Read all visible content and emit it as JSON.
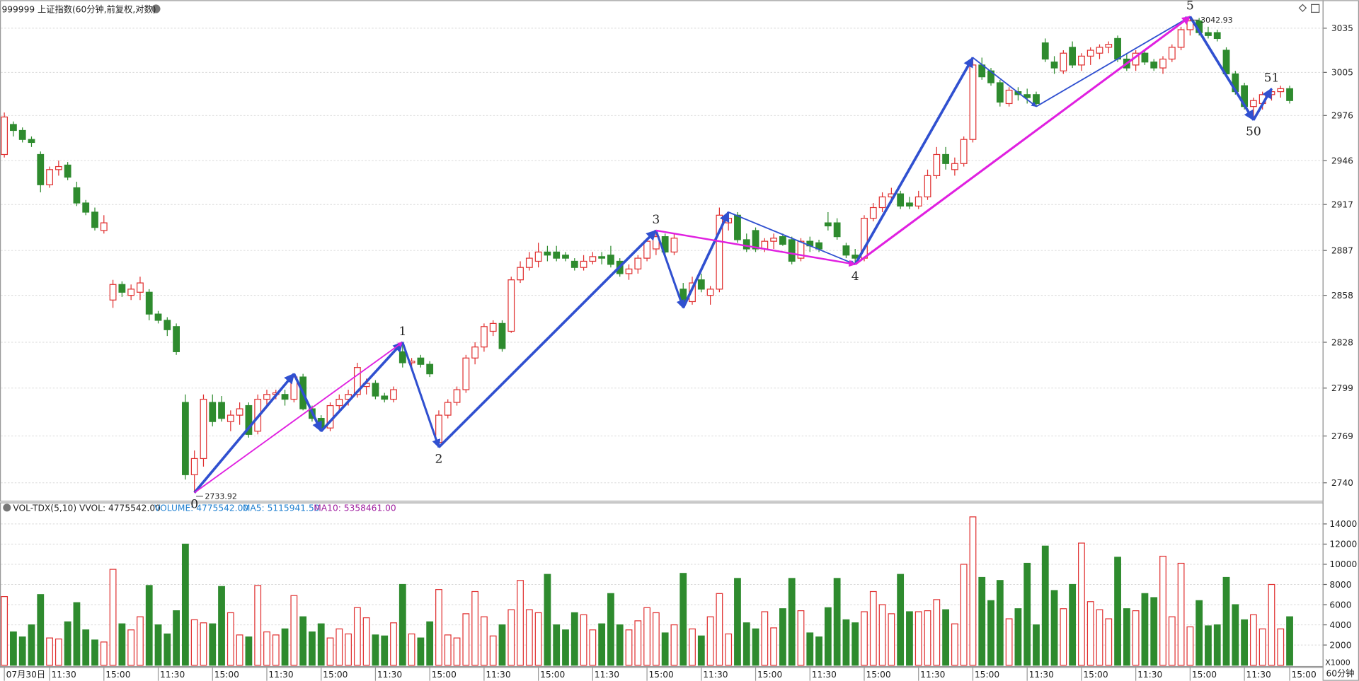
{
  "chart_data": {
    "type": "candlestick",
    "title": "999999 上证指数(60分钟,前复权,对数)",
    "log_scale": true,
    "grid": true,
    "up_color": "#e03030",
    "down_color": "#2e8b2e",
    "ylim": [
      2729,
      3053
    ],
    "yticks": [
      2740,
      2769,
      2799,
      2828,
      2858,
      2887,
      2917,
      2946,
      2976,
      3005,
      3035
    ],
    "categories": [
      "07月30日",
      null,
      null,
      null,
      null,
      "11:30",
      null,
      null,
      null,
      null,
      null,
      "15:00",
      null,
      null,
      null,
      null,
      null,
      "11:30",
      null,
      null,
      null,
      null,
      null,
      "15:00",
      null,
      null,
      null,
      null,
      null,
      "11:30",
      null,
      null,
      null,
      null,
      null,
      "15:00",
      null,
      null,
      null,
      null,
      null,
      "11:30",
      null,
      null,
      null,
      null,
      null,
      "15:00",
      null,
      null,
      null,
      null,
      null,
      "11:30",
      null,
      null,
      null,
      null,
      null,
      "15:00",
      null,
      null,
      null,
      null,
      null,
      "11:30",
      null,
      null,
      null,
      null,
      null,
      "15:00",
      null,
      null,
      null,
      null,
      null,
      "11:30",
      null,
      null,
      null,
      null,
      null,
      "15:00",
      null,
      null,
      null,
      null,
      null,
      "11:30",
      null,
      null,
      null,
      null,
      null,
      "15:00",
      null,
      null,
      null,
      null,
      null,
      "11:30",
      null,
      null,
      null,
      null,
      null,
      "15:00",
      null,
      null,
      null,
      null,
      null,
      "11:30",
      null,
      null,
      null,
      null,
      null,
      "15:00",
      null,
      null,
      null,
      null,
      null,
      "11:30",
      null,
      null,
      null,
      null,
      null,
      "15:00",
      null,
      null,
      null,
      null,
      null,
      "11:30",
      null,
      null,
      null,
      null,
      "15:00"
    ],
    "candles": [
      [
        2950,
        2978,
        2948,
        2975
      ],
      [
        2970,
        2972,
        2962,
        2966
      ],
      [
        2966,
        2968,
        2958,
        2960
      ],
      [
        2960,
        2962,
        2955,
        2958
      ],
      [
        2950,
        2952,
        2925,
        2930
      ],
      [
        2930,
        2942,
        2928,
        2940
      ],
      [
        2940,
        2946,
        2936,
        2942
      ],
      [
        2943,
        2945,
        2933,
        2935
      ],
      [
        2928,
        2932,
        2916,
        2918
      ],
      [
        2918,
        2920,
        2910,
        2912
      ],
      [
        2912,
        2915,
        2900,
        2902
      ],
      [
        2900,
        2910,
        2898,
        2905
      ],
      [
        2855,
        2868,
        2850,
        2865
      ],
      [
        2865,
        2867,
        2857,
        2860
      ],
      [
        2858,
        2865,
        2855,
        2862
      ],
      [
        2860,
        2870,
        2855,
        2866
      ],
      [
        2860,
        2862,
        2842,
        2846
      ],
      [
        2846,
        2848,
        2840,
        2842
      ],
      [
        2842,
        2844,
        2832,
        2836
      ],
      [
        2838,
        2840,
        2820,
        2822
      ],
      [
        2790,
        2795,
        2742,
        2745
      ],
      [
        2745,
        2760,
        2733.92,
        2755
      ],
      [
        2755,
        2795,
        2750,
        2792
      ],
      [
        2790,
        2795,
        2775,
        2778
      ],
      [
        2790,
        2794,
        2778,
        2780
      ],
      [
        2778,
        2785,
        2772,
        2782
      ],
      [
        2782,
        2790,
        2776,
        2786
      ],
      [
        2788,
        2790,
        2768,
        2770
      ],
      [
        2772,
        2795,
        2770,
        2792
      ],
      [
        2792,
        2798,
        2788,
        2795
      ],
      [
        2795,
        2798,
        2792,
        2796
      ],
      [
        2795,
        2798,
        2788,
        2792
      ],
      [
        2792,
        2808,
        2790,
        2806
      ],
      [
        2806,
        2808,
        2785,
        2786
      ],
      [
        2786,
        2788,
        2778,
        2780
      ],
      [
        2780,
        2782,
        2772,
        2774
      ],
      [
        2774,
        2790,
        2772,
        2788
      ],
      [
        2788,
        2795,
        2785,
        2792
      ],
      [
        2792,
        2798,
        2788,
        2795
      ],
      [
        2795,
        2815,
        2793,
        2812
      ],
      [
        2800,
        2805,
        2795,
        2802
      ],
      [
        2802,
        2804,
        2792,
        2794
      ],
      [
        2794,
        2796,
        2790,
        2792
      ],
      [
        2792,
        2800,
        2790,
        2798
      ],
      [
        2822,
        2828,
        2812,
        2815
      ],
      [
        2815,
        2818,
        2810,
        2816
      ],
      [
        2818,
        2820,
        2812,
        2814
      ],
      [
        2814,
        2816,
        2806,
        2808
      ],
      [
        2765,
        2785,
        2762,
        2782
      ],
      [
        2782,
        2792,
        2780,
        2790
      ],
      [
        2790,
        2800,
        2788,
        2798
      ],
      [
        2798,
        2820,
        2796,
        2818
      ],
      [
        2818,
        2828,
        2814,
        2825
      ],
      [
        2825,
        2840,
        2822,
        2838
      ],
      [
        2835,
        2842,
        2832,
        2840
      ],
      [
        2840,
        2842,
        2822,
        2824
      ],
      [
        2835,
        2870,
        2834,
        2868
      ],
      [
        2868,
        2880,
        2866,
        2876
      ],
      [
        2876,
        2886,
        2874,
        2882
      ],
      [
        2880,
        2892,
        2876,
        2886
      ],
      [
        2886,
        2890,
        2880,
        2884
      ],
      [
        2886,
        2890,
        2880,
        2882
      ],
      [
        2884,
        2886,
        2880,
        2882
      ],
      [
        2880,
        2882,
        2874,
        2876
      ],
      [
        2876,
        2884,
        2874,
        2880
      ],
      [
        2880,
        2886,
        2878,
        2883
      ],
      [
        2883,
        2886,
        2878,
        2882
      ],
      [
        2884,
        2890,
        2876,
        2878
      ],
      [
        2880,
        2882,
        2870,
        2872
      ],
      [
        2872,
        2878,
        2868,
        2875
      ],
      [
        2875,
        2884,
        2872,
        2882
      ],
      [
        2882,
        2895,
        2880,
        2893
      ],
      [
        2888,
        2900,
        2884,
        2896
      ],
      [
        2896,
        2898,
        2884,
        2886
      ],
      [
        2886,
        2898,
        2884,
        2895
      ],
      [
        2862,
        2866,
        2850,
        2853
      ],
      [
        2854,
        2870,
        2852,
        2866
      ],
      [
        2868,
        2872,
        2860,
        2862
      ],
      [
        2858,
        2864,
        2852,
        2862
      ],
      [
        2862,
        2915,
        2860,
        2910
      ],
      [
        2905,
        2912,
        2900,
        2908
      ],
      [
        2910,
        2912,
        2892,
        2894
      ],
      [
        2894,
        2898,
        2886,
        2888
      ],
      [
        2900,
        2902,
        2886,
        2888
      ],
      [
        2888,
        2895,
        2886,
        2893
      ],
      [
        2893,
        2898,
        2888,
        2895
      ],
      [
        2896,
        2898,
        2890,
        2891
      ],
      [
        2894,
        2896,
        2878,
        2880
      ],
      [
        2882,
        2895,
        2880,
        2893
      ],
      [
        2893,
        2896,
        2886,
        2890
      ],
      [
        2892,
        2894,
        2886,
        2888
      ],
      [
        2905,
        2912,
        2900,
        2903
      ],
      [
        2905,
        2908,
        2894,
        2896
      ],
      [
        2890,
        2892,
        2882,
        2884
      ],
      [
        2884,
        2888,
        2878,
        2882
      ],
      [
        2882,
        2910,
        2880,
        2908
      ],
      [
        2908,
        2918,
        2906,
        2915
      ],
      [
        2915,
        2925,
        2912,
        2922
      ],
      [
        2922,
        2928,
        2918,
        2924
      ],
      [
        2924,
        2926,
        2914,
        2916
      ],
      [
        2918,
        2922,
        2914,
        2916
      ],
      [
        2916,
        2926,
        2914,
        2922
      ],
      [
        2922,
        2940,
        2920,
        2936
      ],
      [
        2936,
        2955,
        2934,
        2950
      ],
      [
        2950,
        2955,
        2940,
        2944
      ],
      [
        2940,
        2948,
        2936,
        2944
      ],
      [
        2944,
        2962,
        2942,
        2960
      ],
      [
        2960,
        3015,
        2958,
        3010
      ],
      [
        3010,
        3015,
        3000,
        3002
      ],
      [
        3006,
        3008,
        2996,
        2998
      ],
      [
        2998,
        3000,
        2982,
        2985
      ],
      [
        2984,
        2995,
        2982,
        2993
      ],
      [
        2992,
        2995,
        2986,
        2990
      ],
      [
        2990,
        2994,
        2984,
        2988
      ],
      [
        2990,
        2992,
        2982,
        2984
      ],
      [
        3025,
        3028,
        3012,
        3014
      ],
      [
        3012,
        3016,
        3004,
        3008
      ],
      [
        3006,
        3020,
        3004,
        3018
      ],
      [
        3022,
        3026,
        3008,
        3010
      ],
      [
        3010,
        3018,
        3006,
        3016
      ],
      [
        3016,
        3022,
        3010,
        3020
      ],
      [
        3018,
        3024,
        3014,
        3022
      ],
      [
        3022,
        3026,
        3018,
        3024
      ],
      [
        3028,
        3030,
        3012,
        3014
      ],
      [
        3014,
        3018,
        3006,
        3008
      ],
      [
        3010,
        3020,
        3006,
        3018
      ],
      [
        3018,
        3020,
        3010,
        3012
      ],
      [
        3012,
        3014,
        3006,
        3008
      ],
      [
        3008,
        3016,
        3004,
        3014
      ],
      [
        3014,
        3024,
        3012,
        3022
      ],
      [
        3022,
        3036,
        3020,
        3034
      ],
      [
        3034,
        3042.93,
        3030,
        3040
      ],
      [
        3040,
        3042,
        3030,
        3032
      ],
      [
        3032,
        3036,
        3028,
        3030
      ],
      [
        3032,
        3034,
        3026,
        3028
      ],
      [
        3020,
        3022,
        3002,
        3004
      ],
      [
        3004,
        3006,
        2990,
        2992
      ],
      [
        2996,
        2998,
        2980,
        2982
      ],
      [
        2982,
        2988,
        2973,
        2986
      ],
      [
        2984,
        2992,
        2980,
        2990
      ],
      [
        2990,
        2994,
        2986,
        2992
      ],
      [
        2992,
        2996,
        2988,
        2994
      ],
      [
        2994,
        2996,
        2984,
        2986
      ]
    ],
    "annotations": [
      {
        "text": "0",
        "index": 21,
        "price": 2733.92
      },
      {
        "text": "1",
        "index": 44,
        "price": 2828
      },
      {
        "text": "2",
        "index": 48,
        "price": 2762
      },
      {
        "text": "3",
        "index": 72,
        "price": 2900
      },
      {
        "text": "4",
        "index": 94,
        "price": 2878
      },
      {
        "text": "5",
        "index": 131,
        "price": 3042.93
      },
      {
        "text": "50",
        "index": 138,
        "price": 2973
      },
      {
        "text": "51",
        "index": 140,
        "price": 2994
      }
    ],
    "extremes": [
      {
        "index": 21,
        "value": 2733.92
      },
      {
        "index": 131,
        "value": 3042.93
      }
    ],
    "waves": [
      {
        "from": [
          21,
          2733.92
        ],
        "to": [
          32,
          2808
        ],
        "color": "#3050d0",
        "width": 3
      },
      {
        "from": [
          32,
          2808
        ],
        "to": [
          35,
          2772
        ],
        "color": "#3050d0",
        "width": 3
      },
      {
        "from": [
          35,
          2772
        ],
        "to": [
          44,
          2828
        ],
        "color": "#3050d0",
        "width": 3
      },
      {
        "from": [
          21,
          2733.92
        ],
        "to": [
          44,
          2828
        ],
        "color": "#e020e0",
        "width": 1.5
      },
      {
        "from": [
          44,
          2828
        ],
        "to": [
          48,
          2762
        ],
        "color": "#3050d0",
        "width": 2.5
      },
      {
        "from": [
          48,
          2762
        ],
        "to": [
          72,
          2900
        ],
        "color": "#3050d0",
        "width": 3
      },
      {
        "from": [
          72,
          2900
        ],
        "to": [
          75,
          2850
        ],
        "color": "#3050d0",
        "width": 2.5
      },
      {
        "from": [
          75,
          2850
        ],
        "to": [
          80,
          2912
        ],
        "color": "#3050d0",
        "width": 3
      },
      {
        "from": [
          80,
          2912
        ],
        "to": [
          94,
          2878
        ],
        "color": "#3050d0",
        "width": 1.5
      },
      {
        "from": [
          72,
          2900
        ],
        "to": [
          94,
          2878
        ],
        "color": "#e020e0",
        "width": 2
      },
      {
        "from": [
          94,
          2878
        ],
        "to": [
          107,
          3015
        ],
        "color": "#3050d0",
        "width": 3
      },
      {
        "from": [
          107,
          3015
        ],
        "to": [
          114,
          2982
        ],
        "color": "#3050d0",
        "width": 1.5
      },
      {
        "from": [
          114,
          2982
        ],
        "to": [
          131,
          3042.93
        ],
        "color": "#3050d0",
        "width": 1.5
      },
      {
        "from": [
          94,
          2878
        ],
        "to": [
          131,
          3042.93
        ],
        "color": "#e020e0",
        "width": 2.5
      },
      {
        "from": [
          131,
          3042.93
        ],
        "to": [
          138,
          2973
        ],
        "color": "#3050d0",
        "width": 3
      },
      {
        "from": [
          138,
          2973
        ],
        "to": [
          140,
          2994
        ],
        "color": "#3050d0",
        "width": 3
      }
    ],
    "volume": {
      "title": "VOL-TDX(5,10) VVOL: 4775542.00",
      "volume_label": "VOLUME: 4775542.00",
      "ma5_label": "MA5: 5115941.50",
      "ma10_label": "MA10: 5358461.00",
      "unit": "X1000",
      "period": "60分钟",
      "ylim": [
        0,
        15100
      ],
      "yticks": [
        2000,
        4000,
        6000,
        8000,
        10000,
        12000,
        14000
      ],
      "values": [
        6800,
        3300,
        2800,
        4000,
        7000,
        2700,
        2600,
        4300,
        6200,
        3500,
        2500,
        2300,
        9500,
        4100,
        3500,
        4800,
        7900,
        4000,
        3100,
        5400,
        12000,
        4500,
        4200,
        4100,
        7800,
        5200,
        3000,
        2800,
        7900,
        3300,
        3000,
        3600,
        6900,
        4800,
        3300,
        4100,
        2700,
        3600,
        3100,
        5700,
        4700,
        3000,
        2900,
        4200,
        8000,
        3100,
        2700,
        4300,
        7500,
        3000,
        2700,
        5100,
        7300,
        4800,
        2900,
        4000,
        5500,
        8400,
        5500,
        5200,
        9000,
        4000,
        3500,
        5200,
        5000,
        3500,
        4100,
        7100,
        4000,
        3500,
        4400,
        5700,
        5200,
        3200,
        4000,
        9100,
        3600,
        2900,
        4800,
        7100,
        3100,
        8600,
        4200,
        3600,
        5300,
        3700,
        5600,
        8600,
        5400,
        3200,
        2800,
        5700,
        8600,
        4500,
        4200,
        5300,
        7300,
        6000,
        5100,
        9000,
        5300,
        5300,
        5400,
        6500,
        5500,
        4100,
        10000,
        14700,
        8700,
        6400,
        8400,
        4600,
        5600,
        10100,
        4000,
        11800,
        7400,
        5600,
        8000,
        12100,
        6300,
        5500,
        4600,
        10700,
        5600,
        5400,
        7100,
        6700,
        10800,
        4800,
        10100,
        3800,
        6400,
        3900,
        4000,
        8700,
        6000,
        4500,
        5000,
        3600,
        8000,
        3600,
        4800
      ]
    }
  }
}
